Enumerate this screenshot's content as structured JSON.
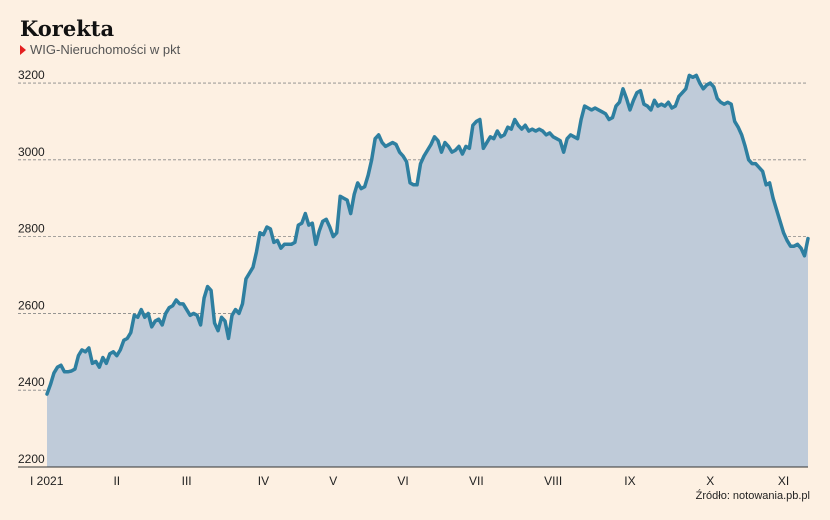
{
  "source": "Źródło: notowania.pb.pl",
  "colors": {
    "background": "#fdf0e2",
    "line": "#2e7fa0",
    "area": "#bfcbd9",
    "grid": "#888888",
    "marker": "#e42020"
  },
  "chart_data": {
    "type": "area",
    "title": "Korekta",
    "series": [
      {
        "name": "WIG-Nieruchomości w pkt",
        "values": [
          2390,
          2415,
          2445,
          2460,
          2465,
          2448,
          2448,
          2450,
          2455,
          2490,
          2505,
          2500,
          2510,
          2470,
          2475,
          2460,
          2485,
          2470,
          2495,
          2500,
          2490,
          2505,
          2530,
          2535,
          2550,
          2595,
          2590,
          2610,
          2590,
          2600,
          2565,
          2580,
          2585,
          2570,
          2600,
          2615,
          2620,
          2635,
          2625,
          2625,
          2610,
          2595,
          2600,
          2595,
          2570,
          2640,
          2670,
          2660,
          2575,
          2555,
          2590,
          2580,
          2535,
          2595,
          2610,
          2600,
          2625,
          2690,
          2705,
          2720,
          2760,
          2810,
          2805,
          2825,
          2820,
          2785,
          2790,
          2770,
          2780,
          2780,
          2780,
          2785,
          2830,
          2835,
          2860,
          2830,
          2835,
          2780,
          2815,
          2840,
          2845,
          2825,
          2800,
          2810,
          2905,
          2900,
          2895,
          2860,
          2910,
          2940,
          2925,
          2930,
          2960,
          3000,
          3055,
          3065,
          3045,
          3035,
          3040,
          3045,
          3040,
          3020,
          3010,
          2995,
          2940,
          2935,
          2935,
          2990,
          3010,
          3025,
          3040,
          3060,
          3050,
          3020,
          3045,
          3035,
          3020,
          3025,
          3035,
          3015,
          3035,
          3030,
          3090,
          3100,
          3105,
          3030,
          3045,
          3060,
          3055,
          3075,
          3060,
          3065,
          3085,
          3080,
          3105,
          3090,
          3080,
          3090,
          3075,
          3080,
          3075,
          3080,
          3075,
          3065,
          3070,
          3060,
          3055,
          3050,
          3020,
          3055,
          3065,
          3060,
          3055,
          3105,
          3140,
          3135,
          3130,
          3135,
          3130,
          3125,
          3120,
          3105,
          3110,
          3140,
          3150,
          3185,
          3160,
          3130,
          3155,
          3175,
          3180,
          3145,
          3140,
          3130,
          3155,
          3140,
          3145,
          3140,
          3150,
          3135,
          3140,
          3165,
          3175,
          3185,
          3220,
          3215,
          3220,
          3200,
          3185,
          3195,
          3200,
          3190,
          3160,
          3150,
          3145,
          3150,
          3145,
          3100,
          3085,
          3065,
          3035,
          3000,
          2990,
          2990,
          2980,
          2970,
          2935,
          2940,
          2900,
          2870,
          2840,
          2810,
          2790,
          2775,
          2775,
          2780,
          2770,
          2750,
          2795
        ]
      }
    ],
    "x_tick_labels": [
      "I 2021",
      "II",
      "III",
      "IV",
      "V",
      "VI",
      "VII",
      "VIII",
      "IX",
      "X",
      "XI"
    ],
    "x_tick_positions": [
      0,
      20,
      40,
      62,
      82,
      102,
      123,
      145,
      167,
      190,
      211
    ],
    "y_ticks": [
      2200,
      2400,
      2600,
      2800,
      3000,
      3200
    ],
    "ylim": [
      2200,
      3260
    ],
    "xlabel": "",
    "ylabel": "",
    "grid": true,
    "grid_style": "dashed horizontal"
  }
}
